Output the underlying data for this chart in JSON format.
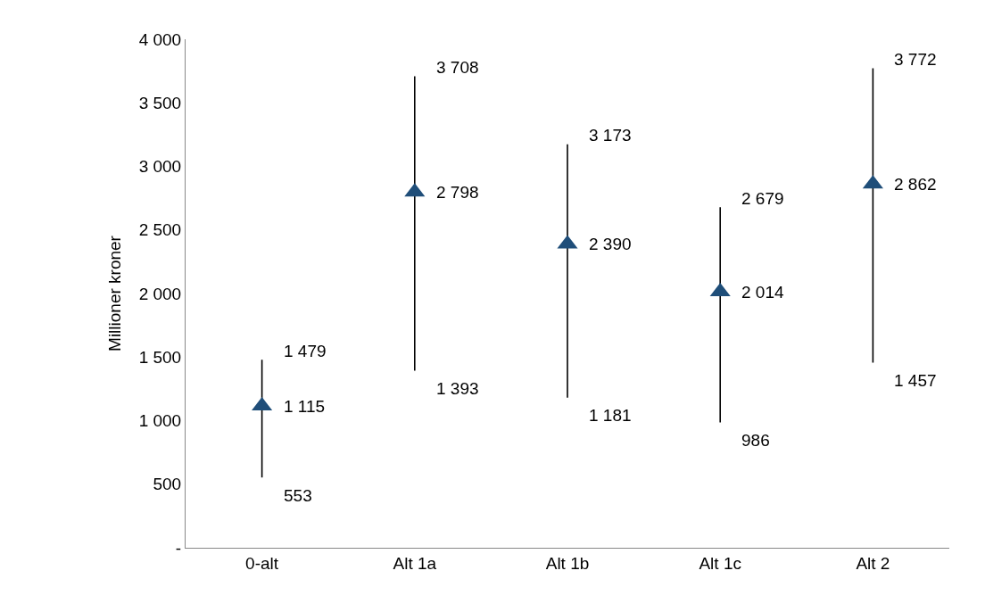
{
  "chart_data": {
    "type": "scatter",
    "ylabel": "Millioner kroner",
    "categories": [
      "0-alt",
      "Alt 1a",
      "Alt 1b",
      "Alt 1c",
      "Alt 2"
    ],
    "values": [
      1115,
      2798,
      2390,
      2014,
      2862
    ],
    "value_labels": [
      "1 115",
      "2 798",
      "2 390",
      "2 014",
      "2 862"
    ],
    "errors": [
      [
        553,
        1479
      ],
      [
        1393,
        3708
      ],
      [
        1181,
        3173
      ],
      [
        986,
        2679
      ],
      [
        1457,
        3772
      ]
    ],
    "color": "#1f4e79",
    "marker": "triangle",
    "annotations": [
      {
        "text": "553",
        "x": "0-alt",
        "y": 553
      },
      {
        "text": "1 479",
        "x": "0-alt",
        "y": 1479
      },
      {
        "text": "1 393",
        "x": "Alt 1a",
        "y": 1393
      },
      {
        "text": "3 708",
        "x": "Alt 1a",
        "y": 3708
      },
      {
        "text": "1 181",
        "x": "Alt 1b",
        "y": 1181
      },
      {
        "text": "3 173",
        "x": "Alt 1b",
        "y": 3173
      },
      {
        "text": "986",
        "x": "Alt 1c",
        "y": 986
      },
      {
        "text": "2 679",
        "x": "Alt 1c",
        "y": 2679
      },
      {
        "text": "1 457",
        "x": "Alt 2",
        "y": 1457
      },
      {
        "text": "3 772",
        "x": "Alt 2",
        "y": 3772
      }
    ],
    "ylim": [
      0,
      4000
    ],
    "yticks": [
      {
        "value": 0,
        "label": "-"
      },
      500,
      {
        "value": 1000,
        "label": "1 000"
      },
      {
        "value": 1500,
        "label": "1 500"
      },
      {
        "value": 2000,
        "label": "2 000"
      },
      {
        "value": 2500,
        "label": "2 500"
      },
      {
        "value": 3000,
        "label": "3 000"
      },
      {
        "value": 3500,
        "label": "3 500"
      },
      {
        "value": 4000,
        "label": "4 000"
      }
    ],
    "legend": false
  }
}
